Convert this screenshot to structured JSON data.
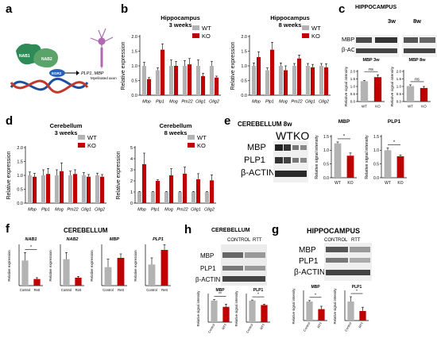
{
  "panels": {
    "a": "a",
    "b": "b",
    "c": "c",
    "d": "d",
    "e": "e",
    "f": "f",
    "g": "g",
    "h": "h"
  },
  "colors": {
    "wt": "#b3b3b3",
    "ko": "#c00000",
    "errbar": "#000000"
  },
  "diagram_a": {
    "nab1": "NAB1",
    "nab2": "NAB2",
    "egr2": "EGR2",
    "genes": "PLP1, MBP",
    "axon_label": "Myelinated axon"
  },
  "common": {
    "ylabel": "Relative expression",
    "ylabel_signal": "Relative signal intensity",
    "wt": "WT",
    "ko": "KO",
    "control": "Control",
    "rett": "Rett",
    "rtt": "RTT",
    "sig": "*",
    "sig2": "**",
    "ns": "ns",
    "genes": [
      "Mbp",
      "Plp1",
      "Mog",
      "Pm22",
      "Olig1",
      "Olig2"
    ]
  },
  "blots": {
    "hippocampus_title": "HIPPOCAMPUS",
    "w3": "3w",
    "w8": "8w",
    "mbp": "MBP",
    "bactin": "β-ACTIN",
    "plp1": "PLP1",
    "cerebellum8w_title": "CEREBELLUM 8w",
    "cerebellum_title": "CEREBELLUM",
    "control_upper": "CONTROL",
    "rtt": "RTT"
  },
  "chart_data": [
    {
      "id": "b-hippocampus-3w",
      "type": "bar",
      "title": "Hippocampus\n3 weeks",
      "ylabel": "Relative expression",
      "ylim": [
        0,
        2.0
      ],
      "yticks": [
        "0.0",
        "0.5",
        "1.0",
        "1.5",
        "2.0"
      ],
      "categories": [
        "Mbp",
        "Plp1",
        "Mog",
        "Pm22",
        "Olig1",
        "Olig2"
      ],
      "series": [
        {
          "name": "WT",
          "values": [
            1.0,
            0.85,
            1.0,
            1.0,
            1.0,
            1.0
          ],
          "errors": [
            0.12,
            0.08,
            0.2,
            0.18,
            0.2,
            0.15
          ]
        },
        {
          "name": "KO",
          "values": [
            0.55,
            1.55,
            1.0,
            1.05,
            0.65,
            0.6
          ],
          "errors": [
            0.05,
            0.2,
            0.15,
            0.2,
            0.1,
            0.05
          ]
        }
      ],
      "legend": "top-right"
    },
    {
      "id": "b-hippocampus-8w",
      "type": "bar",
      "title": "Hippocampus\n8 weeks",
      "ylabel": "Relative expression",
      "ylim": [
        0,
        2.0
      ],
      "yticks": [
        "0.0",
        "0.5",
        "1.0",
        "1.5",
        "2.0"
      ],
      "categories": [
        "Mbp",
        "Plp1",
        "Mog",
        "Pm22",
        "Olig1",
        "Olig2"
      ],
      "series": [
        {
          "name": "WT",
          "values": [
            1.0,
            0.85,
            1.0,
            1.0,
            1.0,
            1.0
          ],
          "errors": [
            0.1,
            0.08,
            0.1,
            0.08,
            0.08,
            0.08
          ]
        },
        {
          "name": "KO",
          "values": [
            1.3,
            1.55,
            0.85,
            1.25,
            0.95,
            0.95
          ],
          "errors": [
            0.18,
            0.25,
            0.15,
            0.12,
            0.1,
            0.12
          ]
        }
      ],
      "legend": "top-right"
    },
    {
      "id": "c-mbp-3w",
      "type": "bar",
      "title": "MBP 3w",
      "ylabel": "Relative signal intensity",
      "ylim": [
        0,
        2.0
      ],
      "yticks": [
        "0.0",
        "0.5",
        "1.0",
        "1.5",
        "2.0"
      ],
      "categories": [
        "WT",
        "KO"
      ],
      "values": [
        1.35,
        1.62
      ],
      "errors": [
        0.05,
        0.15
      ],
      "annotation": "ns"
    },
    {
      "id": "c-mbp-8w",
      "type": "bar",
      "title": "MBP 8w",
      "ylabel": "Relative signal intensity",
      "ylim": [
        0,
        2.0
      ],
      "yticks": [
        "0.0",
        "0.5",
        "1.0",
        "1.5",
        "2.0"
      ],
      "categories": [
        "WT",
        "KO"
      ],
      "values": [
        1.03,
        0.9
      ],
      "errors": [
        0.08,
        0.1
      ],
      "annotation": "ns"
    },
    {
      "id": "d-cerebellum-3w",
      "type": "bar",
      "title": "Cerebellum\n3 weeks",
      "ylabel": "Relative expression",
      "ylim": [
        0,
        2.0
      ],
      "yticks": [
        "0.0",
        "0.5",
        "1.0",
        "1.5",
        "2.0"
      ],
      "categories": [
        "Mbp",
        "Plp1",
        "Mog",
        "Pm22",
        "Olig1",
        "Olig2"
      ],
      "series": [
        {
          "name": "WT",
          "values": [
            1.0,
            1.0,
            1.0,
            1.0,
            1.0,
            1.0
          ],
          "errors": [
            0.12,
            0.2,
            0.2,
            0.15,
            0.1,
            0.08
          ]
        },
        {
          "name": "KO",
          "values": [
            0.95,
            1.05,
            1.15,
            1.05,
            0.95,
            0.95
          ],
          "errors": [
            0.12,
            0.2,
            0.3,
            0.15,
            0.08,
            0.08
          ]
        }
      ],
      "legend": "top-right"
    },
    {
      "id": "d-cerebellum-8w",
      "type": "bar",
      "title": "Cerebellum\n8 weeks",
      "ylabel": "Relative expression",
      "ylim": [
        0,
        5
      ],
      "yticks": [
        "0",
        "1",
        "2",
        "3",
        "4",
        "5"
      ],
      "categories": [
        "Mbp",
        "Plp1",
        "Mog",
        "Pm22",
        "Olig1",
        "Olig2"
      ],
      "series": [
        {
          "name": "WT",
          "values": [
            1.0,
            1.0,
            1.0,
            1.0,
            1.0,
            1.0
          ],
          "errors": [
            0.05,
            0.05,
            0.05,
            0.05,
            0.05,
            0.05
          ]
        },
        {
          "name": "KO",
          "values": [
            3.5,
            2.0,
            2.5,
            2.65,
            2.15,
            2.05
          ],
          "errors": [
            1.0,
            0.1,
            0.6,
            0.6,
            0.5,
            0.5
          ]
        }
      ],
      "legend": "top-right"
    },
    {
      "id": "e-mbp",
      "type": "bar",
      "title": "MBP",
      "ylabel": "Relative signal intensity",
      "ylim": [
        0,
        1.5
      ],
      "yticks": [
        "0.0",
        "0.5",
        "1.0",
        "1.5"
      ],
      "categories": [
        "WT",
        "KO"
      ],
      "values": [
        1.25,
        0.8
      ],
      "errors": [
        0.05,
        0.1
      ],
      "annotation": "*"
    },
    {
      "id": "e-plp1",
      "type": "bar",
      "title": "PLP1",
      "ylabel": "Relative signal intensity",
      "ylim": [
        0,
        1.5
      ],
      "yticks": [
        "0.0",
        "0.5",
        "1.0",
        "1.5"
      ],
      "categories": [
        "WT",
        "KO"
      ],
      "values": [
        1.0,
        0.78
      ],
      "errors": [
        0.08,
        0.05
      ],
      "annotation": "*"
    },
    {
      "id": "f-nab1",
      "type": "bar",
      "title": "NAB1",
      "ylabel": "Relative expression",
      "ylim": [
        0,
        1.5
      ],
      "categories": [
        "Control",
        "Rett"
      ],
      "values": [
        0.95,
        0.25
      ],
      "errors": [
        0.3,
        0.05
      ],
      "annotation": "*"
    },
    {
      "id": "f-nab2",
      "type": "bar",
      "title": "NAB2",
      "ylabel": "Relative expression",
      "ylim": [
        0,
        1.5
      ],
      "categories": [
        "Control",
        "Rett"
      ],
      "values": [
        1.0,
        0.3
      ],
      "errors": [
        0.25,
        0.05
      ]
    },
    {
      "id": "f-mbp",
      "type": "bar",
      "title": "MBP",
      "ylabel": "Relative expression",
      "ylim": [
        0,
        1.5
      ],
      "categories": [
        "Control",
        "Rett"
      ],
      "values": [
        0.7,
        1.05
      ],
      "errors": [
        0.3,
        0.15
      ]
    },
    {
      "id": "f-plp1",
      "type": "bar",
      "title": "PLP1",
      "ylabel": "Relative expression",
      "ylim": [
        0,
        1.5
      ],
      "categories": [
        "Control",
        "Rett"
      ],
      "values": [
        0.8,
        1.35
      ],
      "errors": [
        0.25,
        0.2
      ]
    },
    {
      "id": "h-mbp",
      "type": "bar",
      "title": "MBP",
      "ylabel": "Relative signal intensity",
      "ylim": [
        0,
        1.5
      ],
      "categories": [
        "Control",
        "RTT"
      ],
      "values": [
        1.2,
        0.85
      ],
      "errors": [
        0.05,
        0.15
      ],
      "annotation": "**"
    },
    {
      "id": "h-plp1",
      "type": "bar",
      "title": "PLP1",
      "ylabel": "Relative signal intensity",
      "ylim": [
        0,
        1.5
      ],
      "categories": [
        "Control",
        "RTT"
      ],
      "values": [
        1.2,
        0.95
      ],
      "errors": [
        0.03,
        0.05
      ],
      "annotation": "*"
    },
    {
      "id": "g-mbp",
      "type": "bar",
      "title": "MBP",
      "ylabel": "Relative signal intensity",
      "ylim": [
        0,
        1.5
      ],
      "categories": [
        "Control",
        "RTT"
      ],
      "values": [
        1.0,
        0.6
      ],
      "errors": [
        0.05,
        0.15
      ],
      "annotation": "*"
    },
    {
      "id": "g-plp1",
      "type": "bar",
      "title": "PLP1",
      "ylabel": "Relative signal intensity",
      "ylim": [
        0,
        1.5
      ],
      "categories": [
        "Control",
        "RTT"
      ],
      "values": [
        1.0,
        0.5
      ],
      "errors": [
        0.25,
        0.2
      ],
      "annotation": "*"
    }
  ]
}
